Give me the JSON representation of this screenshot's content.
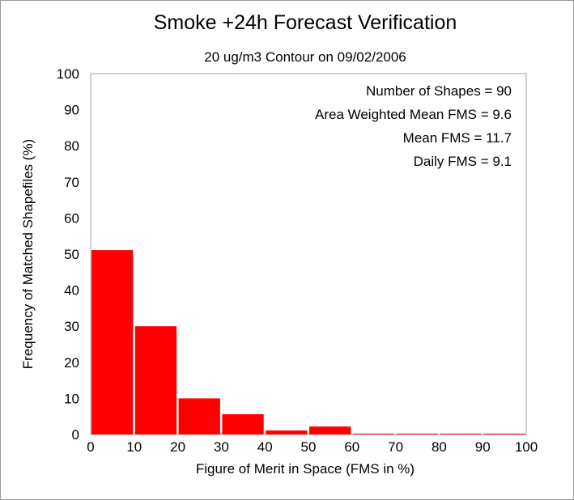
{
  "chart_data": {
    "type": "bar",
    "title": "Smoke +24h Forecast Verification",
    "subtitle": "20 ug/m3 Contour on 09/02/2006",
    "xlabel": "Figure of Merit in Space (FMS in %)",
    "ylabel": "Frequency of Matched Shapefiles (%)",
    "xlim": [
      0,
      100
    ],
    "ylim": [
      0,
      100
    ],
    "x_ticks": [
      "0",
      "10",
      "20",
      "30",
      "40",
      "50",
      "60",
      "70",
      "80",
      "90",
      "100"
    ],
    "y_ticks": [
      "0",
      "10",
      "20",
      "30",
      "40",
      "50",
      "60",
      "70",
      "80",
      "90",
      "100"
    ],
    "bins": [
      {
        "start": 0,
        "end": 10,
        "value": 51.1
      },
      {
        "start": 10,
        "end": 20,
        "value": 30
      },
      {
        "start": 20,
        "end": 30,
        "value": 10
      },
      {
        "start": 30,
        "end": 40,
        "value": 5.6
      },
      {
        "start": 40,
        "end": 50,
        "value": 1.1
      },
      {
        "start": 50,
        "end": 60,
        "value": 2.2
      },
      {
        "start": 60,
        "end": 70,
        "value": 0
      },
      {
        "start": 70,
        "end": 80,
        "value": 0
      },
      {
        "start": 80,
        "end": 90,
        "value": 0
      },
      {
        "start": 90,
        "end": 100,
        "value": 0
      }
    ],
    "bar_color": "#ff0000",
    "annotations": [
      "Number of Shapes = 90",
      "Area Weighted Mean FMS = 9.6",
      "Mean FMS = 11.7",
      "Daily FMS = 9.1"
    ],
    "grid": false
  }
}
